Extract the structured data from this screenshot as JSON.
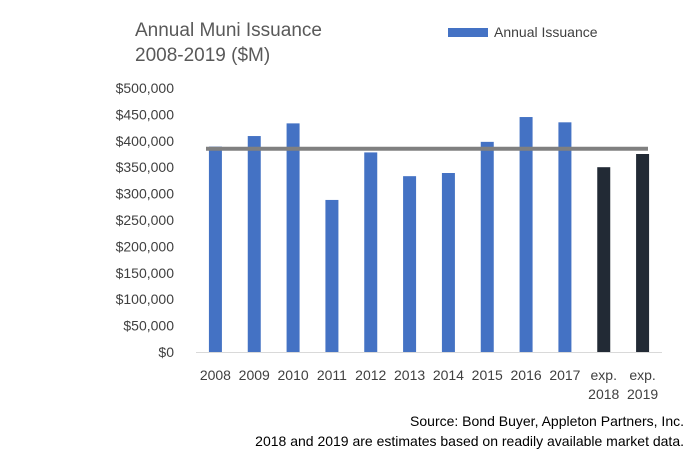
{
  "chart_data": {
    "type": "bar",
    "title_lines": [
      "Annual Muni Issuance",
      "2008-2019 ($M)"
    ],
    "categories": [
      [
        "2008"
      ],
      [
        "2009"
      ],
      [
        "2010"
      ],
      [
        "2011"
      ],
      [
        "2012"
      ],
      [
        "2013"
      ],
      [
        "2014"
      ],
      [
        "2015"
      ],
      [
        "2016"
      ],
      [
        "2017"
      ],
      [
        "exp.",
        "2018"
      ],
      [
        "exp.",
        "2019"
      ]
    ],
    "values": [
      389000,
      409000,
      433000,
      288000,
      378000,
      333000,
      339000,
      398000,
      445000,
      435000,
      350000,
      375000
    ],
    "bar_colors": [
      "#4472C4",
      "#4472C4",
      "#4472C4",
      "#4472C4",
      "#4472C4",
      "#4472C4",
      "#4472C4",
      "#4472C4",
      "#4472C4",
      "#4472C4",
      "#222A35",
      "#222A35"
    ],
    "reference_line": {
      "value": 385000,
      "color": "#808080"
    },
    "ylim": [
      0,
      500000
    ],
    "yticks": [
      "$0",
      "$50,000",
      "$100,000",
      "$150,000",
      "$200,000",
      "$250,000",
      "$300,000",
      "$350,000",
      "$400,000",
      "$450,000",
      "$500,000"
    ],
    "grid": false,
    "legend": {
      "position": "top-right",
      "label": "Annual Issuance",
      "color": "#4472C4"
    }
  },
  "footer": {
    "source": "Source: Bond Buyer, Appleton Partners, Inc.",
    "note": "2018 and 2019 are estimates based on readily available market data."
  }
}
